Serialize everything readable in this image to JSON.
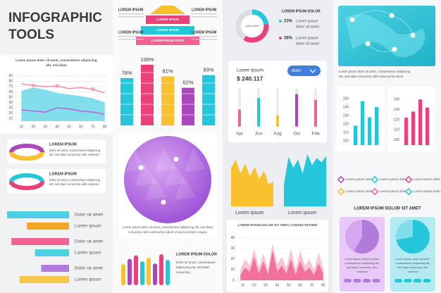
{
  "header": {
    "title_lines": [
      "INFOGRAPHIC",
      "TOOLS"
    ]
  },
  "area_panel": {
    "type": "area",
    "caption_lines": [
      "Lorem ipsum dolor sit amet, consectetuer adipiscing",
      "elit, sed diam"
    ],
    "x": [
      10,
      20,
      30,
      40,
      50,
      60,
      70,
      80
    ],
    "xlim": [
      5,
      82
    ],
    "xticks": [
      10,
      20,
      30,
      40,
      50,
      60,
      70,
      80
    ],
    "ylim": [
      5,
      95
    ],
    "yticks": [
      10,
      20,
      30,
      40,
      50,
      60,
      70,
      80,
      90
    ],
    "series": [
      {
        "color": "#4dd0e1",
        "values": [
          62,
          68,
          64,
          58,
          55,
          52,
          48,
          40
        ]
      },
      {
        "color": "#f48fb1",
        "values": [
          75,
          72,
          70,
          71,
          66,
          68,
          65,
          58
        ]
      },
      {
        "color": "#c060d8",
        "values": [
          26,
          24,
          22,
          30,
          28,
          24,
          22,
          18
        ]
      }
    ]
  },
  "donut_cards": [
    {
      "title": "LOREM IPSUM",
      "text_lines": [
        "Dolor sit amet, consectetuer adipiscing",
        "elit, sed diam nonummy nibh euismod"
      ]
    },
    {
      "title": "LOREM IPSUM",
      "text_lines": [
        "Dolor sit amet, consectetuer adipiscing",
        "elit, sed diam nonummy nibh euismod"
      ]
    }
  ],
  "bar_pairs": {
    "type": "bar",
    "xlim": [
      0,
      100
    ],
    "labels": [
      "Dolor sit amet",
      "Lorem ipsum",
      "Dolor sit amet",
      "Lorem ipsum",
      "Dolor sit amet",
      "Lorem ipsum"
    ],
    "values": [
      100,
      68,
      93,
      55,
      45,
      80
    ],
    "colors": [
      "#4dd0e1",
      "#f5a623",
      "#f06292",
      "#4dd0e1",
      "#b07cdc",
      "#f7c948"
    ]
  },
  "pyramid": {
    "side_labels": [
      "LOREM IPSUM",
      "LOREM IPSUM",
      "LOREM IPSUM",
      "LOREM IPSUM"
    ],
    "tiers": [
      "LOREM IPSUM",
      "LOREM IPSUM",
      "LOREM IPSUM DOOR"
    ]
  },
  "cube_bars": {
    "type": "bar",
    "ylim": [
      0,
      100
    ],
    "values": [
      78,
      100,
      81,
      62,
      83
    ],
    "value_labels": [
      "78%",
      "100%",
      "81%",
      "62%",
      "83%"
    ],
    "colors": [
      "#26c6da",
      "#ec407a",
      "#fbc02d",
      "#ab47bc",
      "#26c6da"
    ]
  },
  "globe": {
    "caption_lines": [
      "Lorem ipsum dolor sit amet, consectetuer adipiscing elit, sed diam",
      "nonummy nibh euismod tincidunt ut laoreet dolore magna"
    ]
  },
  "column_bars": {
    "type": "bar",
    "ylim": [
      0,
      100
    ],
    "values": [
      60,
      75,
      85,
      68,
      78,
      62,
      88,
      72
    ],
    "colors": [
      "#fbc02d",
      "#ab47bc",
      "#ec407a",
      "#26c6da",
      "#fbc02d",
      "#ab47bc",
      "#ec407a",
      "#26c6da"
    ],
    "title": "LOREM IPSUM DOLOR",
    "text_lines": [
      "Dolor sit amet, consectetuer",
      "adipiscing elit, sed diam",
      "nonummy"
    ]
  },
  "donut_panel": {
    "type": "donut",
    "center_label": "lorem ipsum",
    "title": "LOREM IPSUM DOLOR",
    "values": [
      23,
      36
    ],
    "value_labels": [
      "23%",
      "36%"
    ],
    "colors": [
      "#26c6da",
      "#ec407a"
    ],
    "item_lines": [
      [
        "Lorem ipsum",
        "dolor sit amet"
      ],
      [
        "Lorem ipsum",
        "dolor sit amet"
      ]
    ]
  },
  "stat_card": {
    "type": "bar",
    "label": "Lorem Ipsum",
    "amount": "$ 240.117",
    "dropdown": "dolor",
    "categories": [
      "Apr",
      "Jun",
      "Aug",
      "Oct",
      "Feb"
    ],
    "values": [
      45,
      75,
      30,
      85,
      70
    ],
    "colors": [
      "#f06292",
      "#26c6da",
      "#fbc02d",
      "#ab47bc",
      "#f06292"
    ],
    "ylim": [
      0,
      100
    ]
  },
  "mini_areas": {
    "type": "area",
    "ylim": [
      0,
      100
    ],
    "labels": [
      "Lorem ipsum",
      "Lorem ipsum"
    ],
    "series": [
      {
        "color": "#fbc02d",
        "values": [
          70,
          85,
          60,
          78,
          55,
          72,
          50,
          65,
          40,
          45
        ]
      },
      {
        "color": "#26c6da",
        "values": [
          40,
          90,
          70,
          85,
          60,
          95,
          75,
          88,
          80,
          92
        ]
      }
    ]
  },
  "wave_chart": {
    "type": "area",
    "title": "LOREM IPSUM DOLOR SIT AMET, CONSECTETUER",
    "x": [
      8,
      12,
      16,
      20,
      24,
      28,
      32,
      36,
      40,
      44,
      48,
      52,
      56,
      60,
      64,
      68,
      72,
      76,
      80
    ],
    "xlim": [
      6,
      82
    ],
    "xticks": [
      10,
      20,
      30,
      40,
      50,
      60,
      70,
      80
    ],
    "ylim": [
      0,
      45
    ],
    "yticks": [
      0,
      10,
      20,
      30,
      40
    ],
    "series": [
      {
        "color": "#f8bbd0",
        "values": [
          10,
          20,
          14,
          30,
          12,
          25,
          10,
          35,
          15,
          22,
          12,
          30,
          10,
          28,
          14,
          20,
          10,
          26,
          12
        ]
      },
      {
        "color": "#f06292",
        "values": [
          5,
          12,
          8,
          22,
          6,
          18,
          5,
          28,
          8,
          14,
          6,
          20,
          5,
          18,
          8,
          12,
          5,
          16,
          6
        ]
      }
    ]
  },
  "map": {
    "caption_lines": [
      "Lorem ipsum dolor sit amet, consectetuer adipiscing",
      "elit, sed diam nonummy nibh euismod tincidunt"
    ]
  },
  "bar_cards": [
    {
      "type": "bar",
      "ylim": [
        95,
        155
      ],
      "yticks": [
        100,
        110,
        120,
        130,
        140,
        150
      ],
      "values": [
        118,
        147,
        128,
        140
      ],
      "colors": [
        "#26c6da",
        "#26c6da",
        "#26c6da",
        "#26c6da"
      ]
    },
    {
      "type": "bar",
      "ylim": [
        95,
        145
      ],
      "yticks": [
        100,
        110,
        120,
        130,
        140
      ],
      "values": [
        122,
        128,
        140,
        132
      ],
      "colors": [
        "#ec407a",
        "#ec407a",
        "#ec407a",
        "#ec407a"
      ]
    }
  ],
  "legend": {
    "labels": [
      "Lorem ipsum dolor",
      "Lorem ipsum dolor",
      "Lorem ipsum dolor",
      "Lorem ipsum dolor",
      "Lorem ipsum dolor",
      "Lorem ipsum dolor"
    ],
    "colors": [
      "#ab47bc",
      "#26c6da",
      "#ec407a",
      "#fbc02d",
      "#f06292",
      "#26c6da"
    ]
  },
  "pie_section": {
    "title": "LOREM IPSUM DOLOR SIT AMET",
    "cards": [
      {
        "type": "pie",
        "values": [
          58,
          42
        ],
        "colors": [
          "#b07cdc",
          "#d7a6f0"
        ],
        "background": "#e9c9f7",
        "text_lines": [
          "Lorem ipsum dolor sit amet,",
          "consectetuer adipiscing elit,",
          "sed diam nonummy nibh",
          "euismod"
        ]
      },
      {
        "type": "pie",
        "values": [
          72,
          28
        ],
        "colors": [
          "#26c6da",
          "#80deea"
        ],
        "background": "#b2ebf2",
        "text_lines": [
          "Lorem ipsum dolor sit amet,",
          "consectetuer adipiscing elit,",
          "sed diam nonummy nibh",
          "euismod"
        ]
      }
    ]
  }
}
